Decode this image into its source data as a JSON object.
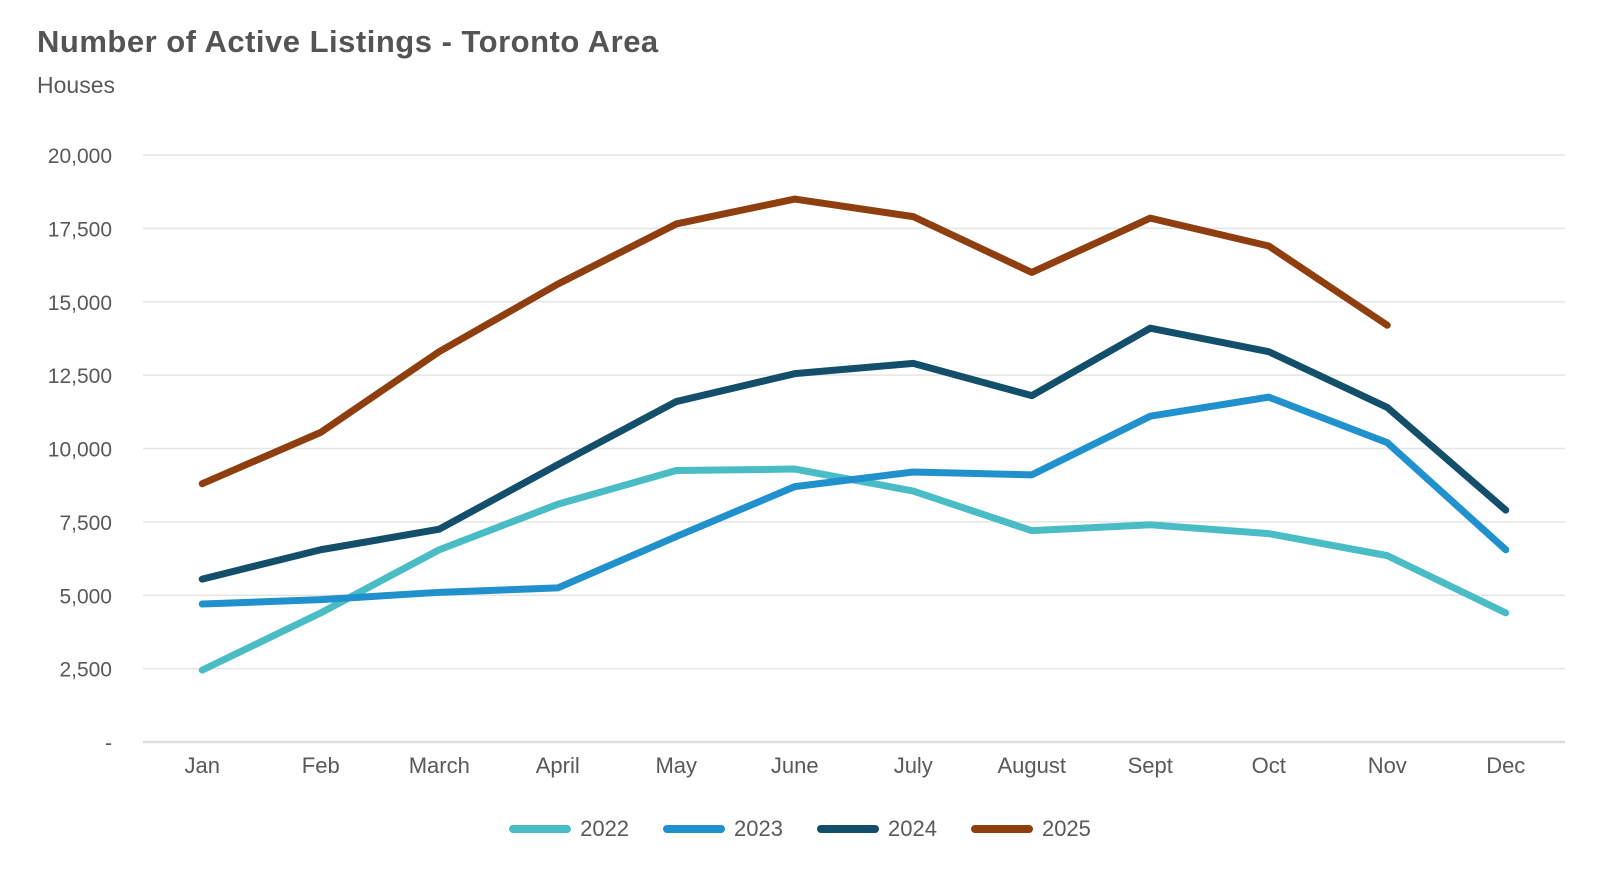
{
  "header": {
    "title": "Number of Active Listings - Toronto Area",
    "subtitle": "Houses"
  },
  "chart_data": {
    "type": "line",
    "title": "Number of Active Listings - Toronto Area",
    "subtitle": "Houses",
    "categories": [
      "Jan",
      "Feb",
      "March",
      "April",
      "May",
      "June",
      "July",
      "August",
      "Sept",
      "Oct",
      "Nov",
      "Dec"
    ],
    "y_axis": {
      "min": 0,
      "max": 20000,
      "step": 2500
    },
    "y_tick_labels": [
      "-",
      "2,500",
      "5,000",
      "7,500",
      "10,000",
      "12,500",
      "15,000",
      "17,500",
      "20,000"
    ],
    "grid": "horizontal",
    "legend_position": "bottom",
    "series": [
      {
        "name": "2022",
        "color": "#4ABCC6",
        "values": [
          2450,
          4400,
          6550,
          8100,
          9250,
          9300,
          8550,
          7200,
          7400,
          7100,
          6350,
          4400
        ]
      },
      {
        "name": "2023",
        "color": "#2191CE",
        "values": [
          4700,
          4850,
          5100,
          5250,
          7000,
          8700,
          9200,
          9100,
          11100,
          11750,
          10200,
          6550
        ]
      },
      {
        "name": "2024",
        "color": "#134F6B",
        "values": [
          5550,
          6550,
          7250,
          9450,
          11600,
          12550,
          12900,
          11800,
          14100,
          13300,
          11400,
          7900
        ]
      },
      {
        "name": "2025",
        "color": "#8F3E0F",
        "values": [
          8800,
          10550,
          13300,
          15600,
          17650,
          18500,
          17900,
          16000,
          17850,
          16900,
          14200,
          null
        ]
      }
    ]
  },
  "colors": {
    "background": "#FFFFFF",
    "text": "#595959",
    "title_text": "#545454",
    "grid": "#E5E5E5",
    "axis": "#DCDCDC"
  }
}
